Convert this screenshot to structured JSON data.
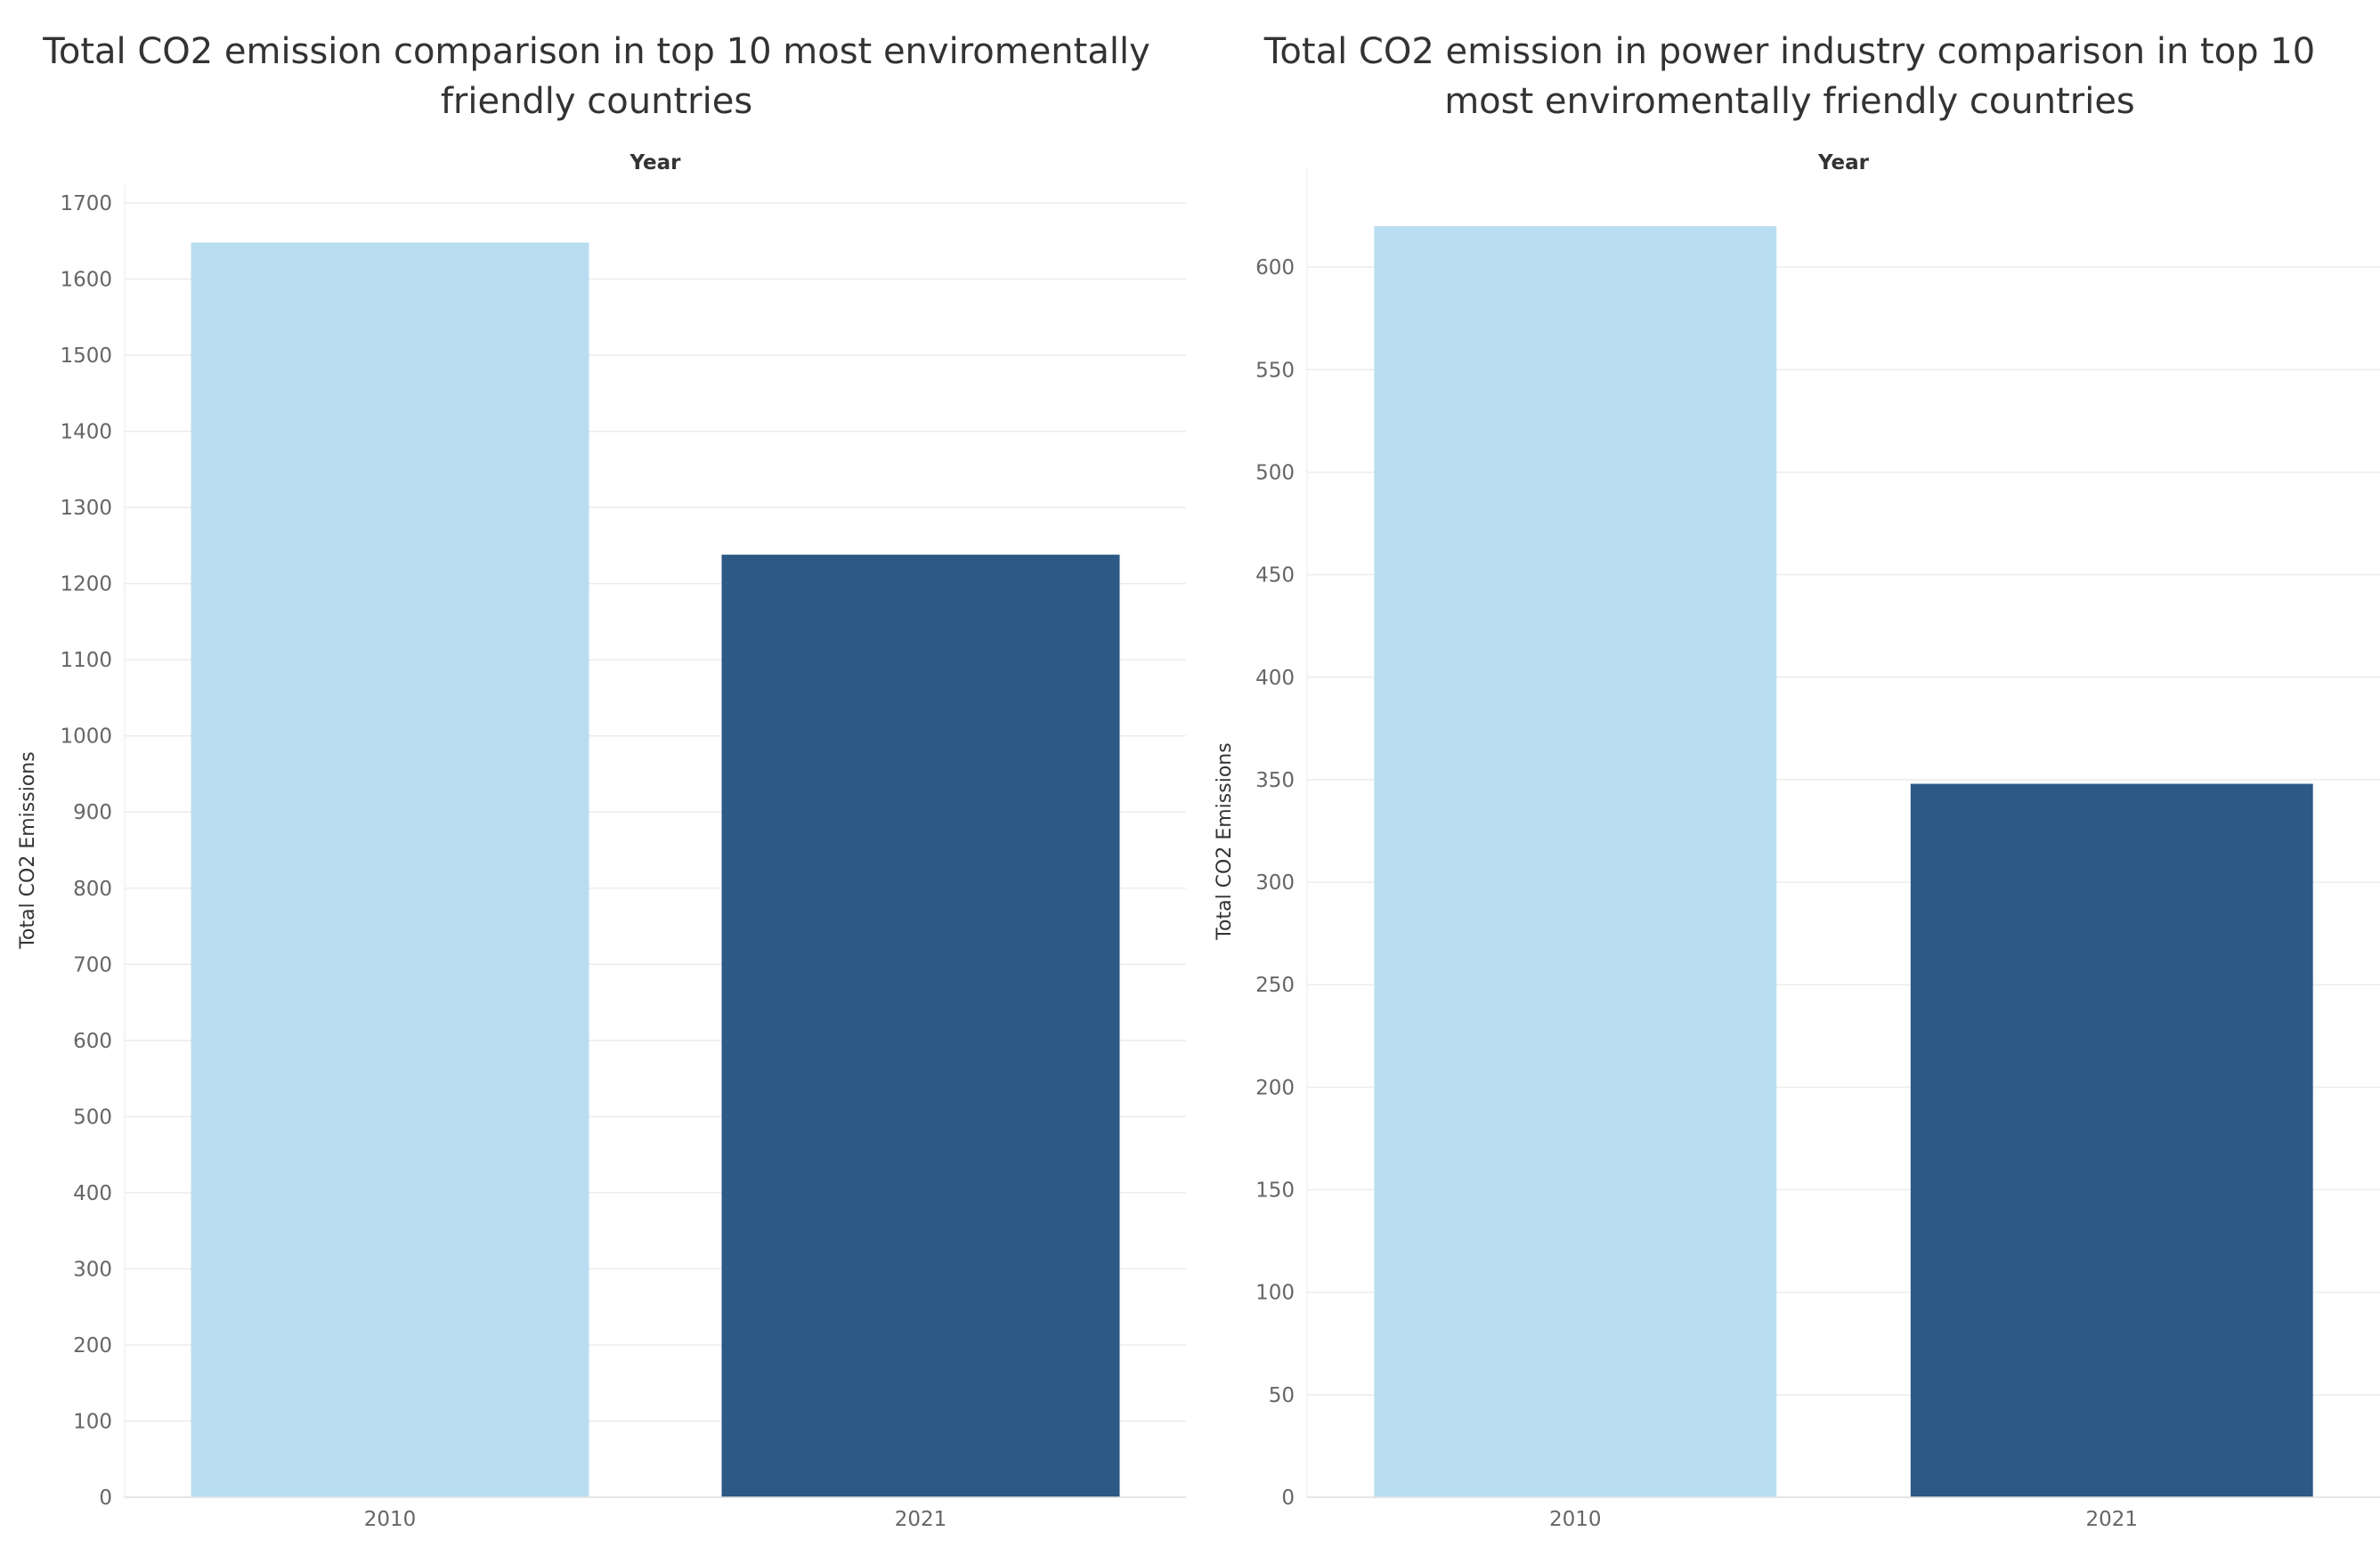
{
  "chart_data": [
    {
      "type": "bar",
      "title": "Total CO2 emission comparison in top 10 most enviromentally friendly countries",
      "column_header": "Year",
      "xlabel": "",
      "ylabel": "Total CO2 Emissions",
      "categories": [
        "2010",
        "2021"
      ],
      "values": [
        1648,
        1238
      ],
      "colors": [
        "#b9ddf0",
        "#2c5985"
      ],
      "ylim": [
        0,
        1700
      ],
      "yticks": [
        0,
        100,
        200,
        300,
        400,
        500,
        600,
        700,
        800,
        900,
        1000,
        1100,
        1200,
        1300,
        1400,
        1500,
        1600,
        1700
      ],
      "grid": true,
      "legend": "none"
    },
    {
      "type": "bar",
      "title": "Total CO2 emission in power industry comparison in top 10 most enviromentally friendly countries",
      "column_header": "Year",
      "xlabel": "",
      "ylabel": "Total CO2 Emissions",
      "categories": [
        "2010",
        "2021"
      ],
      "values": [
        620,
        348
      ],
      "colors": [
        "#b9ddf0",
        "#2c5985"
      ],
      "ylim": [
        0,
        640
      ],
      "yticks": [
        0,
        50,
        100,
        150,
        200,
        250,
        300,
        350,
        400,
        450,
        500,
        550,
        600
      ],
      "grid": true,
      "legend": "none"
    }
  ]
}
